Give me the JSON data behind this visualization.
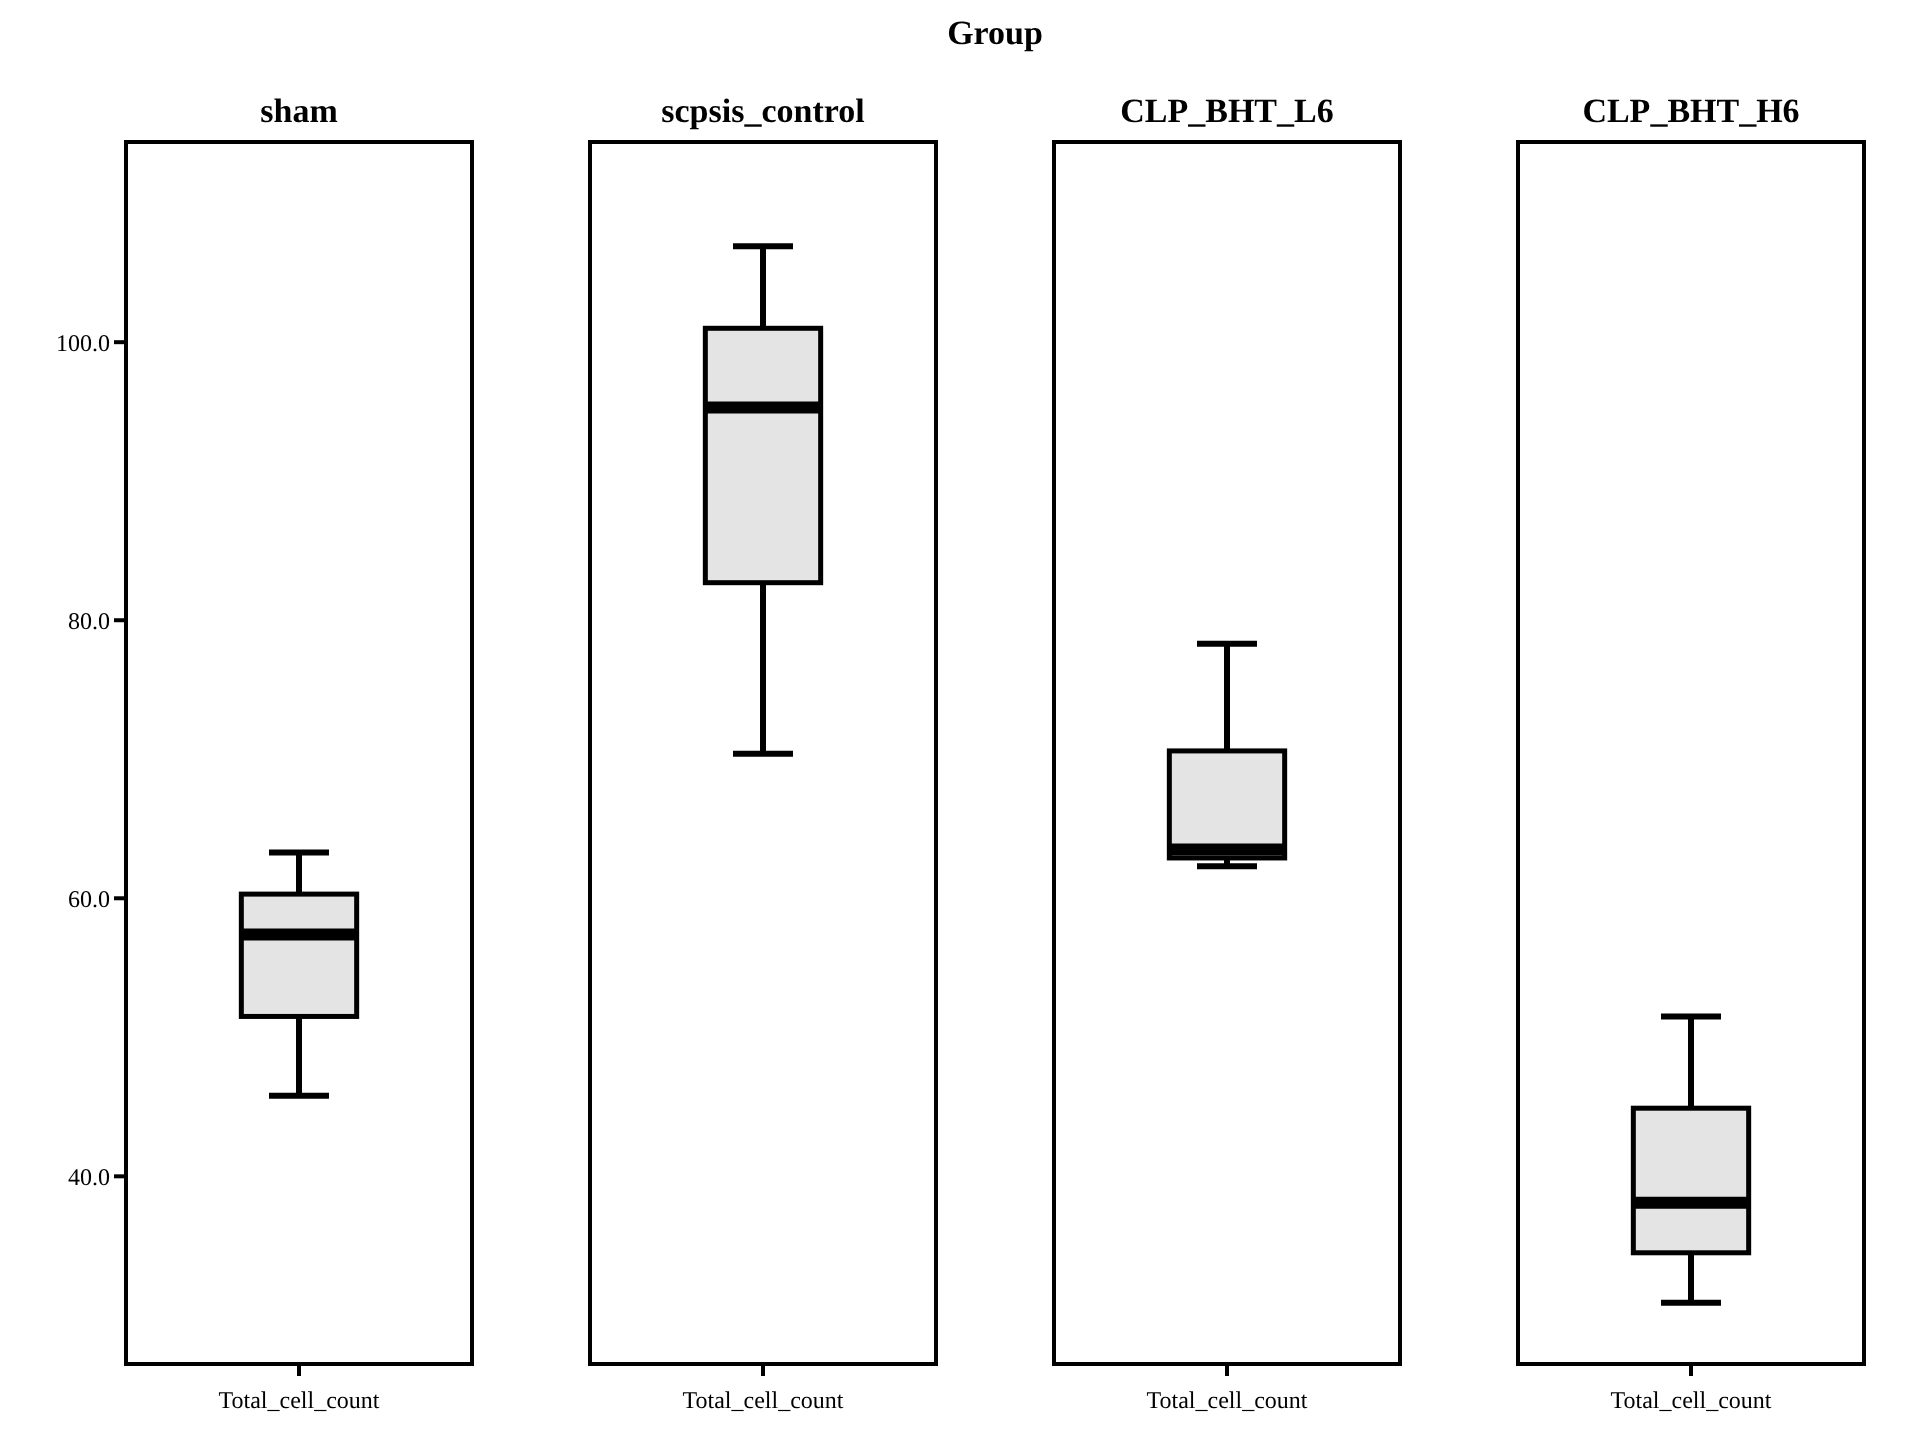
{
  "chart_data": [
    {
      "type": "box",
      "title": "sham",
      "annotations": [
        "Group"
      ],
      "categories": [
        "Total_cell_count"
      ],
      "color": "#e4e4e4",
      "ylim": [
        26.5,
        114.4
      ],
      "yticks": [
        {
          "value": 40,
          "label": "40.0"
        },
        {
          "value": 60,
          "label": "60.0"
        },
        {
          "value": 80,
          "label": "80.0"
        },
        {
          "value": 100,
          "label": "100.0"
        }
      ],
      "boxes": [
        {
          "low": 45.8,
          "q1": 51.5,
          "median": 57.4,
          "q3": 60.3,
          "high": 63.3
        }
      ]
    },
    {
      "type": "box",
      "title": "scpsis_control",
      "categories": [
        "Total_cell_count"
      ],
      "color": "#e4e4e4",
      "ylim": [
        26.5,
        114.4
      ],
      "tick_labels": "x",
      "boxes": [
        {
          "low": 70.4,
          "q1": 82.7,
          "median": 95.3,
          "q3": 101.0,
          "high": 106.9
        }
      ]
    },
    {
      "type": "box",
      "title": "CLP_BHT_L6",
      "categories": [
        "Total_cell_count"
      ],
      "color": "#e4e4e4",
      "ylim": [
        26.5,
        114.4
      ],
      "tick_labels": "x",
      "boxes": [
        {
          "low": 62.3,
          "q1": 62.9,
          "median": 63.5,
          "q3": 70.6,
          "high": 78.3
        }
      ]
    },
    {
      "type": "box",
      "title": "CLP_BHT_H6",
      "categories": [
        "Total_cell_count"
      ],
      "color": "#e4e4e4",
      "ylim": [
        26.5,
        114.4
      ],
      "tick_labels": "x",
      "boxes": [
        {
          "low": 30.9,
          "q1": 34.5,
          "median": 38.1,
          "q3": 44.9,
          "high": 51.5
        }
      ]
    }
  ]
}
